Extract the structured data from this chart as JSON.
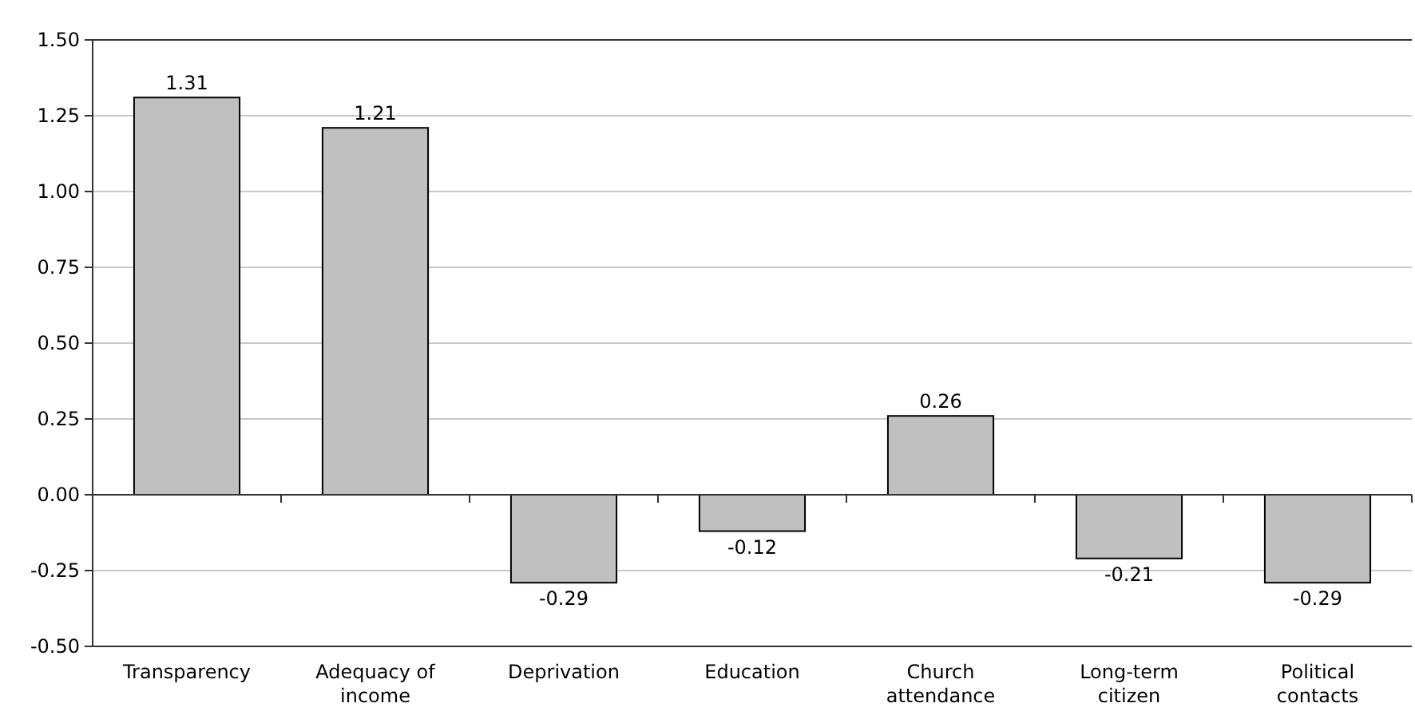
{
  "chart_data": {
    "type": "bar",
    "categories": [
      "Transparency",
      "Adequacy of income",
      "Deprivation",
      "Education",
      "Church attendance",
      "Long-term citizen",
      "Political contacts"
    ],
    "values": [
      1.31,
      1.21,
      -0.29,
      -0.12,
      0.26,
      -0.21,
      -0.29
    ],
    "color": "#c0c0c0",
    "ylim": [
      -0.5,
      1.5
    ],
    "yticks": [
      {
        "value": -0.5,
        "label": "-0.50"
      },
      {
        "value": -0.25,
        "label": "-0.25"
      },
      {
        "value": 0,
        "label": "0.00"
      },
      {
        "value": 0.25,
        "label": "0.25"
      },
      {
        "value": 0.5,
        "label": "0.50"
      },
      {
        "value": 0.75,
        "label": "0.75"
      },
      {
        "value": 1,
        "label": "1.00"
      },
      {
        "value": 1.25,
        "label": "1.25"
      },
      {
        "value": 1.5,
        "label": "1.50"
      }
    ],
    "grid": "y",
    "data_labels": true
  }
}
